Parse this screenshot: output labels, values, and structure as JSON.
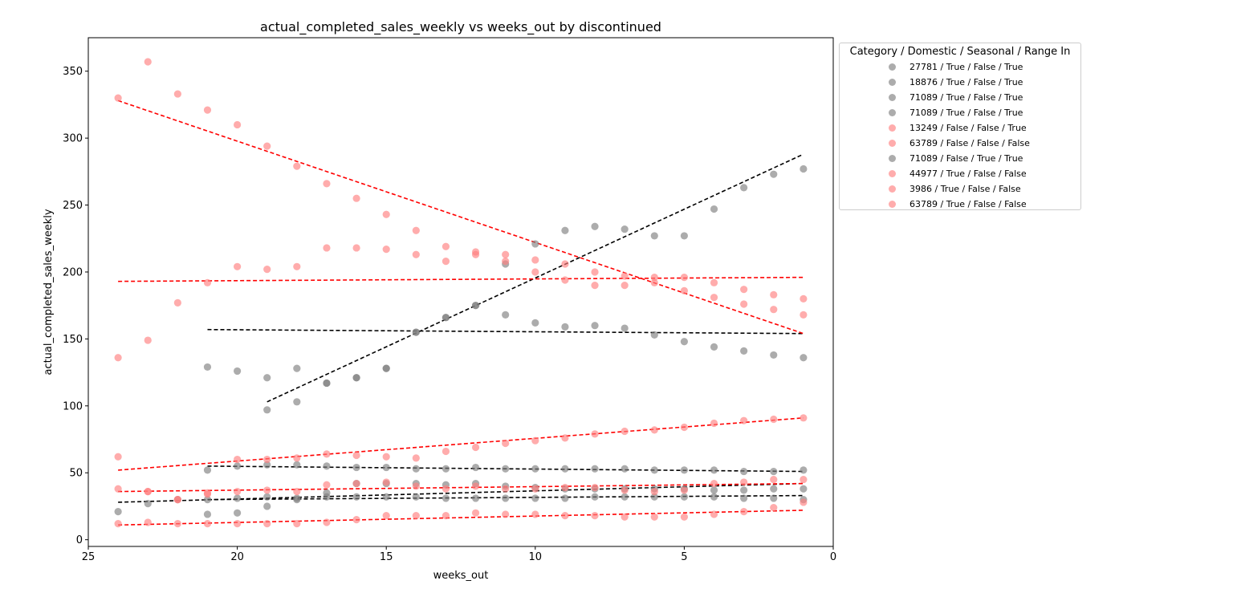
{
  "chart_data": {
    "type": "scatter",
    "title": "actual_completed_sales_weekly vs weeks_out by discontinued",
    "xlabel": "weeks_out",
    "ylabel": "actual_completed_sales_weekly",
    "xlim": [
      25,
      0
    ],
    "ylim": [
      -5,
      375
    ],
    "x_inverted": true,
    "xticks": [
      25,
      20,
      15,
      10,
      5,
      0
    ],
    "yticks": [
      0,
      50,
      100,
      150,
      200,
      250,
      300,
      350
    ],
    "grid": false,
    "legend": {
      "title": "Category / Domestic / Seasonal / Range In",
      "placement": "outside-right-top"
    },
    "colors": {
      "discontinued_true": "#808080",
      "discontinued_false": "#ff7f7f"
    },
    "series": [
      {
        "name": "27781 / True / False / True",
        "color": "#808080",
        "trend_color": "#000000",
        "x": [
          21,
          20,
          19,
          18,
          17,
          16,
          15,
          14,
          13,
          12,
          11,
          10,
          9,
          8,
          7,
          6,
          5,
          4,
          3,
          2,
          1
        ],
        "y": [
          52,
          55,
          56,
          56,
          55,
          54,
          54,
          53,
          53,
          54,
          53,
          53,
          53,
          53,
          53,
          52,
          52,
          52,
          51,
          51,
          52
        ],
        "trend": [
          [
            21,
            55
          ],
          [
            1,
            51
          ]
        ]
      },
      {
        "name": "18876 / True / False / True",
        "color": "#808080",
        "trend_color": "#000000",
        "x": [
          21,
          20,
          19,
          18,
          17,
          16,
          15,
          14,
          13,
          12,
          11,
          10,
          9,
          8,
          7,
          6,
          5,
          4,
          3,
          2,
          1
        ],
        "y": [
          129,
          126,
          121,
          128,
          117,
          121,
          128,
          155,
          166,
          175,
          168,
          162,
          159,
          160,
          158,
          153,
          148,
          144,
          141,
          138,
          136
        ],
        "trend": [
          [
            21,
            157
          ],
          [
            1,
            154
          ]
        ]
      },
      {
        "name": "71089 / True / False / True",
        "color": "#808080",
        "trend_color": "#000000",
        "x": [
          19,
          18,
          17,
          16,
          15,
          14,
          13,
          12,
          11,
          10,
          9,
          8,
          7,
          6,
          5,
          4,
          3,
          2,
          1
        ],
        "y": [
          97,
          103,
          117,
          121,
          128,
          155,
          166,
          175,
          206,
          221,
          231,
          234,
          232,
          227,
          227,
          247,
          263,
          273,
          277
        ],
        "trend": [
          [
            19,
            103
          ],
          [
            1,
            288
          ]
        ]
      },
      {
        "name": "71089 / True / False / True",
        "color": "#808080",
        "trend_color": "#000000",
        "x": [
          21,
          20,
          19,
          18,
          17,
          16,
          15,
          14,
          13,
          12,
          11,
          10,
          9,
          8,
          7,
          6,
          5,
          4,
          3,
          2,
          1
        ],
        "y": [
          30,
          31,
          32,
          31,
          32,
          32,
          32,
          32,
          31,
          31,
          31,
          31,
          31,
          32,
          32,
          32,
          32,
          32,
          31,
          31,
          30
        ],
        "trend": [
          [
            21,
            30
          ],
          [
            1,
            33
          ]
        ]
      },
      {
        "name": "13249 / False / False / True",
        "color": "#ff7f7f",
        "trend_color": "#ff0000",
        "x": [
          24,
          23,
          22,
          21,
          20,
          19,
          18,
          17,
          16,
          15,
          14,
          13,
          12,
          11,
          10,
          9,
          8,
          7,
          6,
          5,
          4,
          3,
          2,
          1
        ],
        "y": [
          330,
          357,
          333,
          321,
          310,
          294,
          279,
          266,
          255,
          243,
          231,
          219,
          213,
          208,
          200,
          194,
          190,
          190,
          192,
          186,
          181,
          176,
          172,
          168
        ],
        "trend": [
          [
            24,
            328
          ],
          [
            1,
            154
          ]
        ]
      },
      {
        "name": "63789 / False / False / False",
        "color": "#ff7f7f",
        "trend_color": "#ff0000",
        "x": [
          24,
          23,
          22,
          21,
          20,
          19,
          18,
          17,
          16,
          15,
          14,
          13,
          12,
          11,
          10,
          9,
          8,
          7,
          6,
          5,
          4,
          3,
          2,
          1
        ],
        "y": [
          136,
          149,
          177,
          192,
          204,
          202,
          204,
          218,
          218,
          217,
          213,
          208,
          215,
          213,
          209,
          206,
          200,
          197,
          196,
          196,
          192,
          187,
          183,
          180
        ],
        "trend": [
          [
            24,
            193
          ],
          [
            1,
            196
          ]
        ]
      },
      {
        "name": "71089 / False / True / True",
        "color": "#808080",
        "trend_color": "#000000",
        "x": [
          24,
          23,
          22,
          21,
          20,
          19,
          18,
          17,
          16,
          15,
          14,
          13,
          12,
          11,
          10,
          9,
          8,
          7,
          6,
          5,
          4,
          3,
          2,
          1
        ],
        "y": [
          21,
          27,
          30,
          19,
          20,
          25,
          30,
          35,
          42,
          42,
          42,
          41,
          42,
          40,
          39,
          38,
          38,
          38,
          38,
          38,
          37,
          37,
          38,
          38
        ],
        "trend": [
          [
            24,
            28
          ],
          [
            1,
            42
          ]
        ]
      },
      {
        "name": "44977 / True / False / False",
        "color": "#ff7f7f",
        "trend_color": "#ff0000",
        "x": [
          24,
          23,
          22,
          21,
          20,
          19,
          18,
          17,
          16,
          15,
          14,
          13,
          12,
          11,
          10,
          9,
          8,
          7,
          6,
          5,
          4,
          3,
          2,
          1
        ],
        "y": [
          62,
          36,
          30,
          35,
          60,
          60,
          61,
          64,
          63,
          62,
          61,
          66,
          69,
          72,
          74,
          76,
          79,
          81,
          82,
          84,
          87,
          89,
          90,
          91
        ],
        "trend": [
          [
            24,
            52
          ],
          [
            1,
            91
          ]
        ]
      },
      {
        "name": "3986 / True / False / False",
        "color": "#ff7f7f",
        "trend_color": "#ff0000",
        "x": [
          24,
          23,
          22,
          21,
          20,
          19,
          18,
          17,
          16,
          15,
          14,
          13,
          12,
          11,
          10,
          9,
          8,
          7,
          6,
          5,
          4,
          3,
          2,
          1
        ],
        "y": [
          38,
          36,
          30,
          34,
          36,
          37,
          36,
          41,
          42,
          43,
          40,
          38,
          40,
          38,
          38,
          39,
          39,
          37,
          36,
          37,
          42,
          43,
          45,
          45
        ],
        "trend": [
          [
            24,
            36
          ],
          [
            1,
            42
          ]
        ]
      },
      {
        "name": "63789 / True / False / False",
        "color": "#ff7f7f",
        "trend_color": "#ff0000",
        "x": [
          24,
          23,
          22,
          21,
          20,
          19,
          18,
          17,
          16,
          15,
          14,
          13,
          12,
          11,
          10,
          9,
          8,
          7,
          6,
          5,
          4,
          3,
          2,
          1
        ],
        "y": [
          12,
          13,
          12,
          12,
          12,
          12,
          12,
          13,
          15,
          18,
          18,
          18,
          20,
          19,
          19,
          18,
          18,
          17,
          17,
          17,
          19,
          21,
          24,
          28
        ],
        "trend": [
          [
            24,
            11
          ],
          [
            1,
            22
          ]
        ]
      }
    ]
  }
}
